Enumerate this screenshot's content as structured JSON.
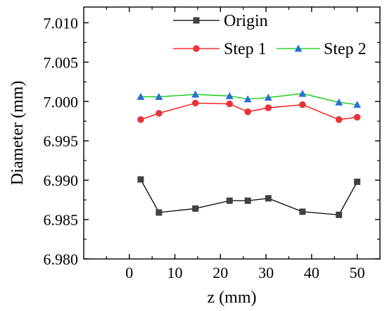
{
  "chart_data": {
    "type": "line",
    "title": "",
    "xlabel": "z (mm)",
    "ylabel": "Diameter (mm)",
    "xlim": [
      -10,
      55
    ],
    "ylim": [
      6.98,
      7.012
    ],
    "xticks": [
      0,
      10,
      20,
      30,
      40,
      50
    ],
    "xtick_labels": [
      "0",
      "10",
      "20",
      "30",
      "40",
      "50"
    ],
    "yticks": [
      6.98,
      6.985,
      6.99,
      6.995,
      7.0,
      7.005,
      7.01
    ],
    "ytick_labels": [
      "6.980",
      "6.985",
      "6.990",
      "6.995",
      "7.000",
      "7.005",
      "7.010"
    ],
    "grid": false,
    "legend_position": "top-right",
    "x": [
      2.5,
      6.5,
      14.5,
      22,
      26,
      30.5,
      38,
      46,
      50
    ],
    "series": [
      {
        "name": "Origin",
        "color": "#000000",
        "marker_color": "#404040",
        "marker": "square",
        "values": [
          6.9901,
          6.9859,
          6.9864,
          6.9874,
          6.9874,
          6.9877,
          6.986,
          6.9856,
          6.9898
        ]
      },
      {
        "name": "Step 1",
        "color": "#ff0000",
        "marker_color": "#e8343a",
        "marker": "circle",
        "values": [
          6.9977,
          6.9985,
          6.9998,
          6.9997,
          6.9987,
          6.9992,
          6.9996,
          6.9977,
          6.998
        ]
      },
      {
        "name": "Step 2",
        "color": "#00cc00",
        "marker_color": "#2a6fd6",
        "marker": "triangle",
        "values": [
          7.0006,
          7.0006,
          7.0009,
          7.0007,
          7.0003,
          7.0005,
          7.001,
          6.9999,
          6.9996
        ]
      }
    ]
  }
}
